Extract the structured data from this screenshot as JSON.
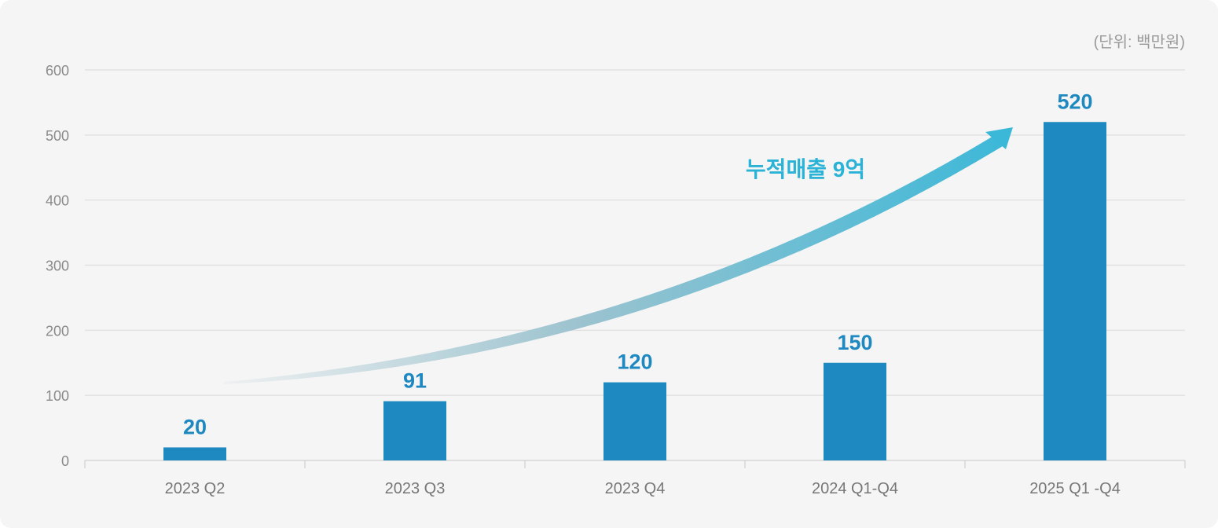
{
  "chart_data": {
    "type": "bar",
    "title": "",
    "unit_label": "(단위: 백만원)",
    "categories": [
      "2023 Q2",
      "2023 Q3",
      "2023 Q4",
      "2024 Q1-Q4",
      "2025 Q1 -Q4"
    ],
    "values": [
      20,
      91,
      120,
      150,
      520
    ],
    "data_labels": [
      "20",
      "91",
      "120",
      "150",
      "520"
    ],
    "yticks": [
      0,
      100,
      200,
      300,
      400,
      500,
      600
    ],
    "ylim": [
      0,
      600
    ],
    "xlabel": "",
    "ylabel": "",
    "grid": true,
    "annotation": "누적매출 9억",
    "colors": {
      "bar": "#1e88c0",
      "label": "#1e88c0",
      "arrow_end": "#3bb8d8",
      "arrow_start": "#e6eaec"
    }
  }
}
